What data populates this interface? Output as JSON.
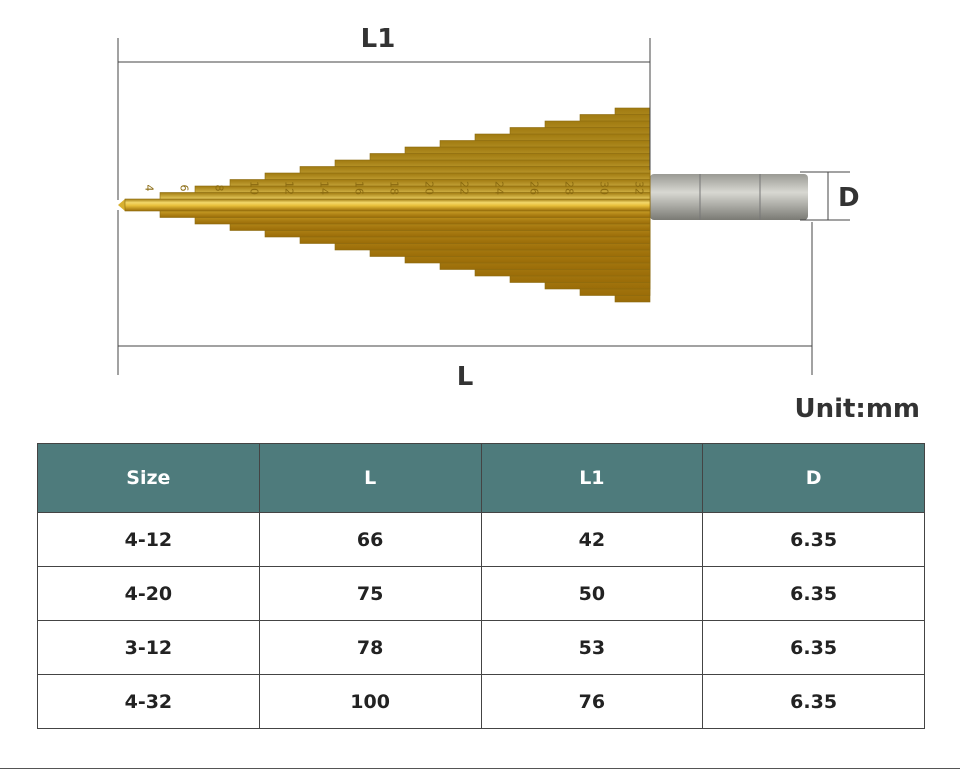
{
  "drill": {
    "step_labels": [
      "4",
      "6",
      "8",
      "10",
      "12",
      "14",
      "16",
      "18",
      "20",
      "22",
      "24",
      "26",
      "28",
      "30",
      "32"
    ]
  },
  "dimensions": {
    "l1": "L1",
    "l": "L",
    "d": "D"
  },
  "unit": "Unit:mm",
  "table": {
    "headers": [
      "Size",
      "L",
      "L1",
      "D"
    ],
    "rows": [
      [
        "4-12",
        "66",
        "42",
        "6.35"
      ],
      [
        "4-20",
        "75",
        "50",
        "6.35"
      ],
      [
        "3-12",
        "78",
        "53",
        "6.35"
      ],
      [
        "4-32",
        "100",
        "76",
        "6.35"
      ]
    ]
  }
}
